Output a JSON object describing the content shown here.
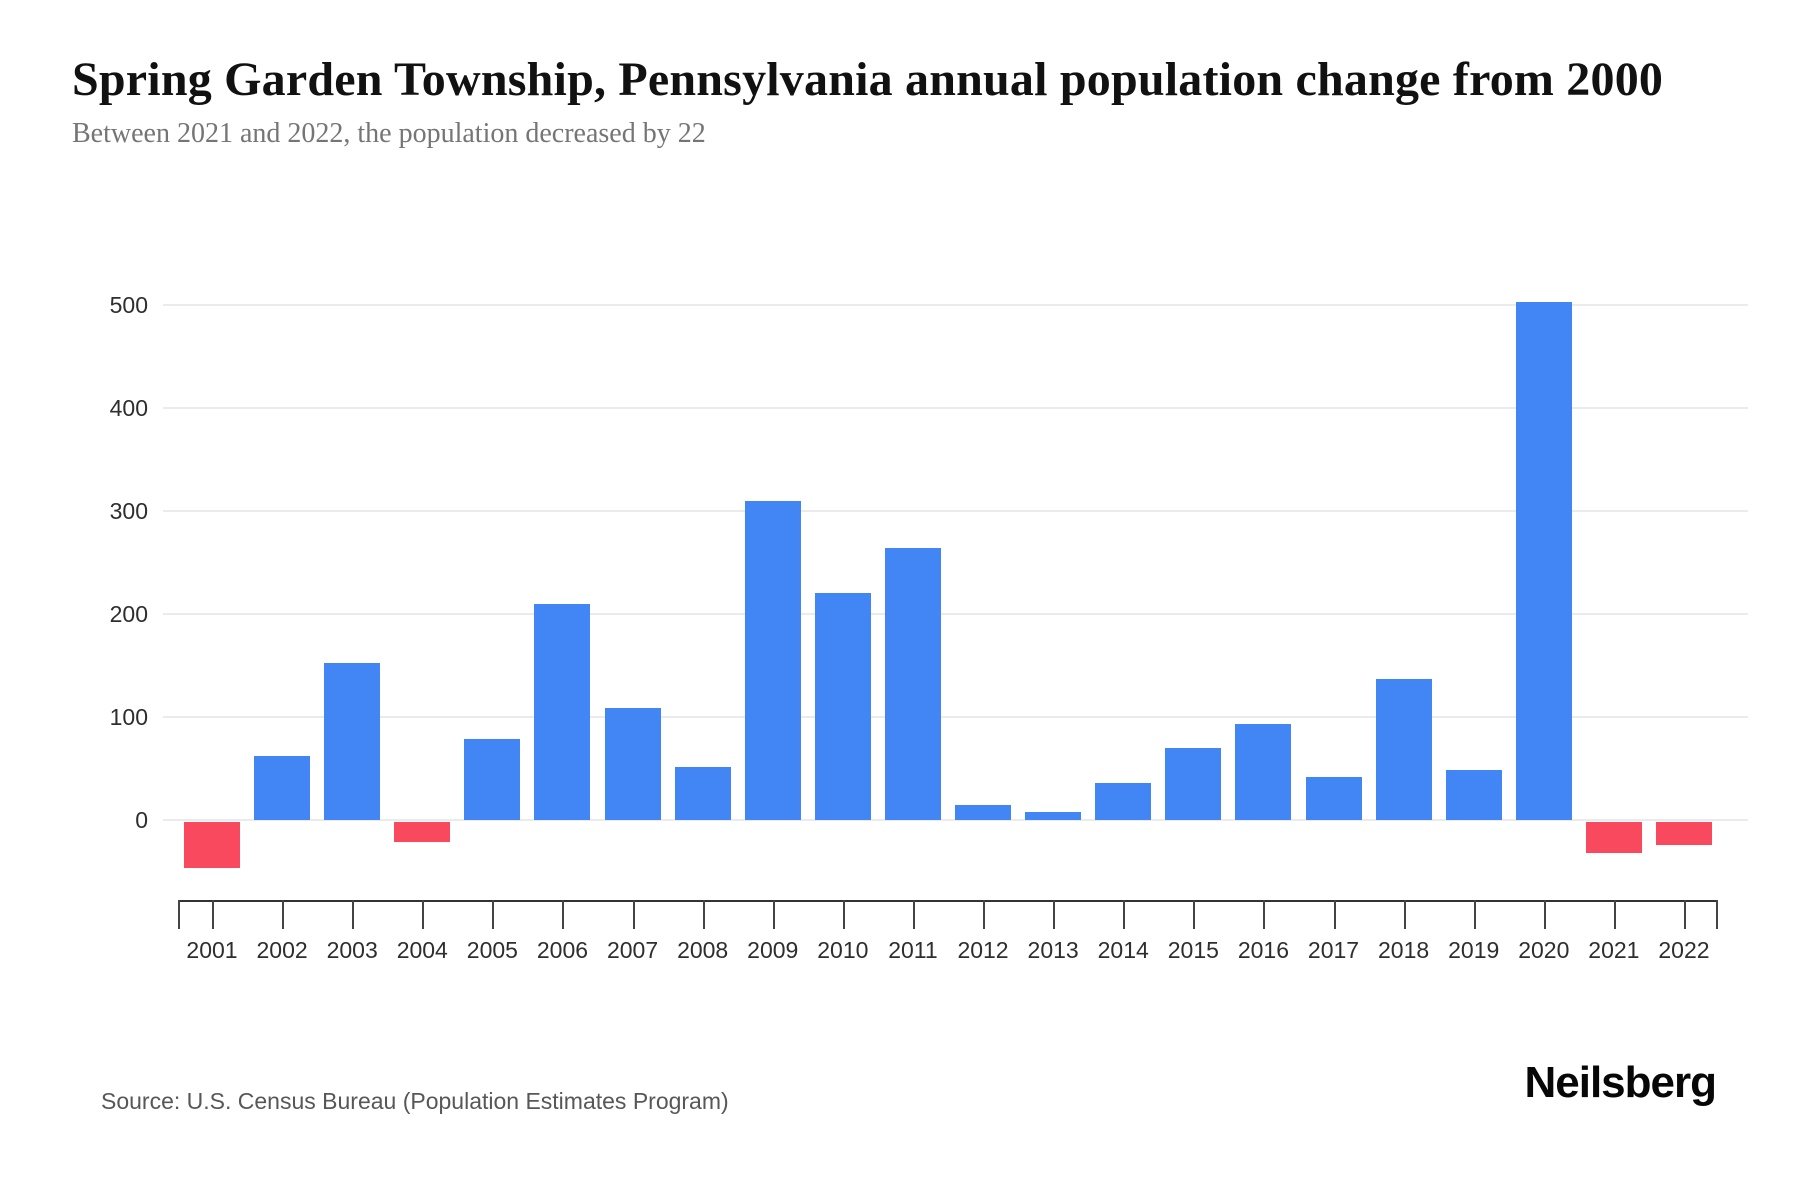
{
  "header": {
    "title": "Spring Garden Township, Pennsylvania annual population change from 2000",
    "subtitle": "Between 2021 and 2022, the population decreased by 22"
  },
  "chart_data": {
    "type": "bar",
    "title": "Spring Garden Township, Pennsylvania annual population change from 2000",
    "subtitle": "Between 2021 and 2022, the population decreased by 22",
    "xlabel": "",
    "ylabel": "",
    "categories": [
      "2001",
      "2002",
      "2003",
      "2004",
      "2005",
      "2006",
      "2007",
      "2008",
      "2009",
      "2010",
      "2011",
      "2012",
      "2013",
      "2014",
      "2015",
      "2016",
      "2017",
      "2018",
      "2019",
      "2020",
      "2021",
      "2022"
    ],
    "values": [
      -45,
      62,
      152,
      -19,
      79,
      210,
      109,
      51,
      310,
      220,
      264,
      15,
      8,
      36,
      70,
      93,
      42,
      137,
      49,
      503,
      -30,
      -22
    ],
    "yticks": [
      0,
      100,
      200,
      300,
      400,
      500
    ],
    "ylim": [
      -60,
      520
    ],
    "grid": "horizontal-light",
    "legend": "none",
    "positive_color": "#4285F4",
    "negative_color": "#F9495F",
    "gridline_color": "#ebebeb",
    "axis_color": "#333333",
    "label_color": "#2e2e2e"
  },
  "footer": {
    "source": "Source: U.S. Census Bureau (Population Estimates Program)",
    "brand": "Neilsberg"
  }
}
